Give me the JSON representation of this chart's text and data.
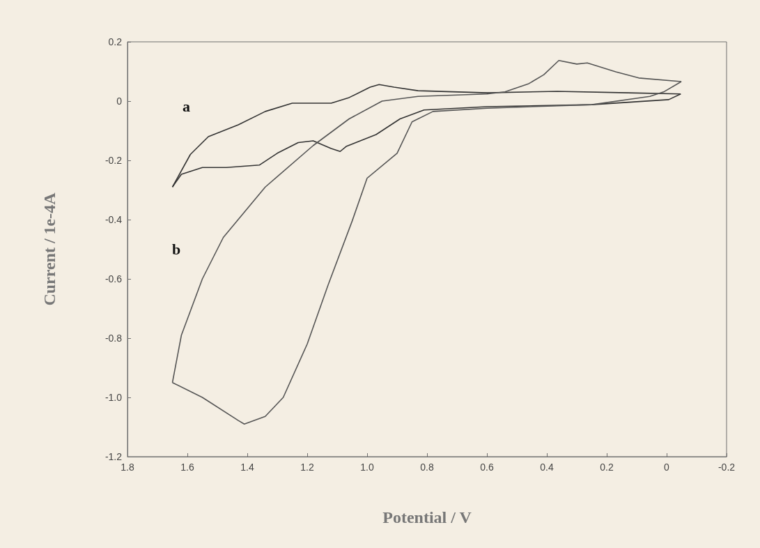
{
  "chart_data": {
    "type": "line",
    "xlabel": "Potential / V",
    "ylabel": "Current / 1e-4A",
    "xlim": [
      1.8,
      -0.2
    ],
    "xticks": [
      1.8,
      1.6,
      1.4,
      1.2,
      {
        "value": 1,
        "label": "1.0"
      },
      0.8,
      0.6,
      0.4,
      0.2,
      0,
      -0.2
    ],
    "ylim": [
      -1.2,
      0.2
    ],
    "yticks": [
      {
        "value": -1.2,
        "label": "-1.2"
      },
      {
        "value": -1,
        "label": "-1.0"
      },
      -0.8,
      -0.6,
      -0.4,
      -0.2,
      0,
      0.2
    ],
    "grid": false,
    "marker": "none",
    "line_style": "solid",
    "series": [
      {
        "color": "#333333",
        "x": [
          1.65,
          1.59,
          1.53,
          1.43,
          1.34,
          1.25,
          1.2,
          1.12,
          1.06,
          0.99,
          0.96,
          0.91,
          0.83,
          0.6,
          0.365,
          0.13,
          -0.047
        ],
        "values": [
          -0.29,
          -0.18,
          -0.12,
          -0.08,
          -0.035,
          -0.007,
          -0.007,
          -0.007,
          0.012,
          0.047,
          0.056,
          0.047,
          0.035,
          0.028,
          0.033,
          0.028,
          0.024
        ]
      },
      {
        "color": "#333333",
        "x": [
          -0.047,
          -0.007,
          0.25,
          0.6,
          0.81,
          0.89,
          0.97,
          1.07,
          1.09,
          1.12,
          1.18,
          1.23,
          1.3,
          1.36,
          1.47,
          1.55,
          1.62,
          1.65
        ],
        "values": [
          0.024,
          0.005,
          -0.012,
          -0.019,
          -0.03,
          -0.06,
          -0.113,
          -0.153,
          -0.17,
          -0.16,
          -0.134,
          -0.14,
          -0.176,
          -0.216,
          -0.224,
          -0.224,
          -0.247,
          -0.29
        ]
      },
      {
        "color": "#555555",
        "x": [
          1.65,
          1.62,
          1.55,
          1.48,
          1.34,
          1.18,
          1.06,
          0.95,
          0.83,
          0.6,
          0.54,
          0.46,
          0.41,
          0.36,
          0.3,
          0.265,
          0.17,
          0.093,
          -0.049
        ],
        "values": [
          -0.95,
          -0.79,
          -0.6,
          -0.46,
          -0.29,
          -0.15,
          -0.06,
          0,
          0.016,
          0.024,
          0.031,
          0.059,
          0.089,
          0.137,
          0.125,
          0.129,
          0.099,
          0.078,
          0.066
        ]
      },
      {
        "color": "#555555",
        "x": [
          -0.049,
          0.01,
          0.056,
          0.25,
          0.6,
          0.78,
          0.85,
          0.9,
          1.0,
          1.05,
          1.13,
          1.2,
          1.28,
          1.34,
          1.41,
          1.43,
          1.55,
          1.65
        ],
        "values": [
          0.066,
          0.031,
          0.016,
          -0.012,
          -0.024,
          -0.035,
          -0.07,
          -0.176,
          -0.26,
          -0.405,
          -0.62,
          -0.82,
          -1.0,
          -1.064,
          -1.09,
          -1.078,
          -1.0,
          -0.95
        ]
      }
    ],
    "annotations": [
      "a",
      "b"
    ]
  }
}
